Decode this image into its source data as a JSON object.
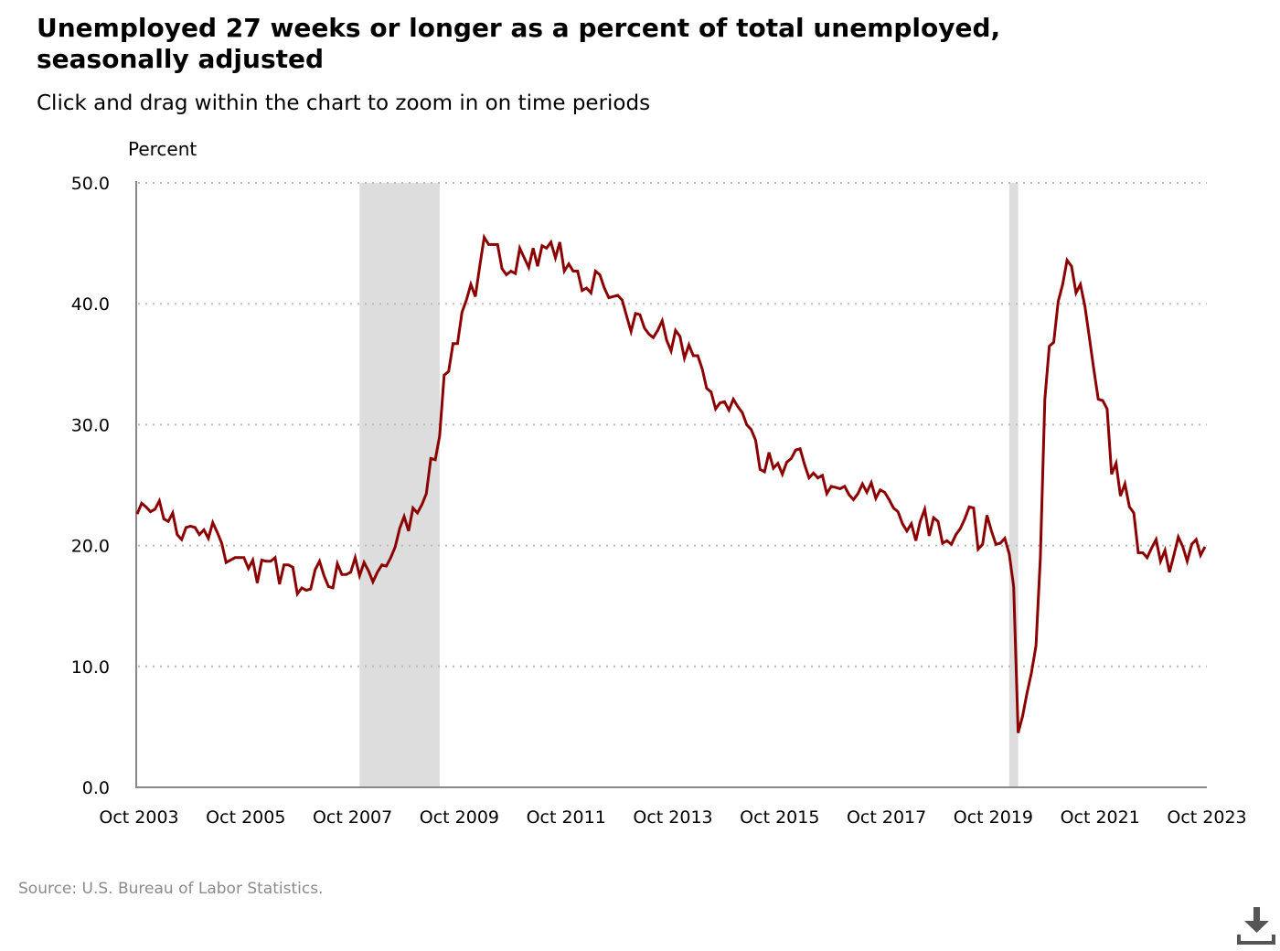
{
  "chart_data": {
    "type": "line",
    "title": "Unemployed 27 weeks or longer as a percent of total unemployed, seasonally adjusted",
    "subtitle": "Click and drag within the chart to zoom in on time periods",
    "ylabel": "Percent",
    "xlabel": "",
    "ylim": [
      0,
      50
    ],
    "yticks": [
      "0.0",
      "10.0",
      "20.0",
      "30.0",
      "40.0",
      "50.0"
    ],
    "ytick_values": [
      0,
      10,
      20,
      30,
      40,
      50
    ],
    "x_start": "Oct 2003",
    "x_end": "Oct 2023",
    "xticks": [
      "Oct 2003",
      "Oct 2005",
      "Oct 2007",
      "Oct 2009",
      "Oct 2011",
      "Oct 2013",
      "Oct 2015",
      "Oct 2017",
      "Oct 2019",
      "Oct 2021",
      "Oct 2023"
    ],
    "xtick_month_index": [
      0,
      24,
      48,
      72,
      96,
      120,
      144,
      168,
      192,
      216,
      240
    ],
    "grid": true,
    "recessions_month_index": [
      [
        50,
        68
      ],
      [
        196,
        198
      ]
    ],
    "series": [
      {
        "name": "Unemployed 27 weeks or longer (% of total unemployed)",
        "color": "#8b0000",
        "frequency": "monthly",
        "values": [
          22.6,
          23.5,
          23.2,
          22.8,
          23.0,
          23.7,
          22.2,
          22.0,
          22.7,
          20.9,
          20.5,
          21.5,
          21.6,
          21.5,
          20.9,
          21.3,
          20.6,
          21.9,
          21.1,
          20.2,
          18.6,
          18.8,
          19.0,
          19.0,
          19.0,
          18.1,
          18.8,
          16.9,
          18.8,
          18.7,
          18.7,
          19.0,
          16.8,
          18.4,
          18.4,
          18.2,
          16.0,
          16.5,
          16.3,
          16.4,
          18.0,
          18.7,
          17.5,
          16.6,
          16.5,
          18.5,
          17.6,
          17.6,
          17.8,
          19.0,
          17.5,
          18.6,
          17.9,
          17.0,
          17.8,
          18.4,
          18.3,
          19.0,
          19.9,
          21.4,
          22.4,
          21.2,
          23.1,
          22.7,
          23.4,
          24.3,
          27.2,
          27.1,
          29.1,
          34.1,
          34.4,
          36.7,
          36.7,
          39.3,
          40.3,
          41.6,
          40.6,
          43.1,
          45.5,
          44.9,
          44.9,
          44.9,
          42.9,
          42.4,
          42.7,
          42.5,
          44.6,
          43.8,
          43.0,
          44.6,
          43.1,
          44.8,
          44.6,
          45.1,
          43.8,
          45.1,
          42.7,
          43.3,
          42.7,
          42.7,
          41.1,
          41.3,
          40.9,
          42.7,
          42.4,
          41.3,
          40.5,
          40.6,
          40.7,
          40.3,
          39.0,
          37.7,
          39.2,
          39.1,
          38.0,
          37.5,
          37.2,
          37.8,
          38.6,
          37.0,
          36.1,
          37.8,
          37.3,
          35.5,
          36.6,
          35.7,
          35.7,
          34.6,
          33.0,
          32.7,
          31.3,
          31.8,
          31.9,
          31.2,
          32.1,
          31.5,
          31.0,
          30.0,
          29.6,
          28.7,
          26.3,
          26.1,
          27.7,
          26.4,
          26.8,
          25.9,
          26.9,
          27.2,
          27.9,
          28.0,
          26.7,
          25.6,
          26.0,
          25.6,
          25.8,
          24.3,
          24.9,
          24.8,
          24.7,
          24.9,
          24.2,
          23.8,
          24.3,
          25.1,
          24.4,
          25.2,
          23.9,
          24.6,
          24.4,
          23.8,
          23.1,
          22.8,
          21.8,
          21.2,
          21.8,
          20.4,
          22.0,
          23.0,
          20.8,
          22.3,
          22.0,
          20.2,
          20.4,
          20.1,
          20.9,
          21.4,
          22.2,
          23.2,
          23.1,
          19.7,
          20.1,
          22.5,
          21.2,
          20.1,
          20.2,
          20.6,
          19.3,
          16.6,
          4.5,
          5.9,
          7.8,
          9.5,
          11.7,
          19.0,
          32.1,
          36.5,
          36.8,
          40.2,
          41.6,
          43.6,
          43.1,
          40.9,
          41.6,
          39.8,
          37.2,
          34.6,
          32.1,
          32.0,
          31.3,
          25.9,
          26.8,
          24.1,
          25.1,
          23.2,
          22.7,
          19.4,
          19.4,
          19.0,
          19.8,
          20.5,
          18.7,
          19.6,
          17.8,
          19.2,
          20.7,
          19.9,
          18.7,
          20.1,
          20.5,
          19.2,
          19.9
        ]
      }
    ],
    "source": "Source: U.S. Bureau of Labor Statistics.",
    "colors": {
      "grid": "#bbbbbb",
      "axis": "#888888",
      "recession": "#dddddd"
    }
  }
}
